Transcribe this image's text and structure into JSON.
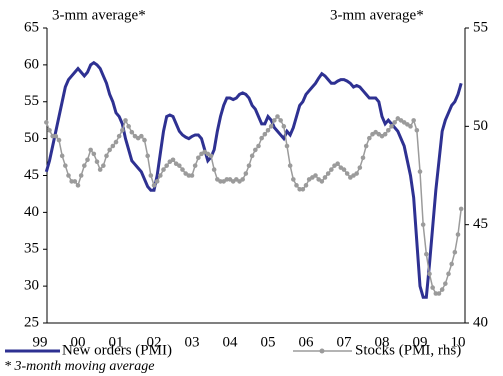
{
  "chart_data": {
    "type": "line",
    "annotations": [
      "3-mm average*",
      "3-mm average*"
    ],
    "footnote": "* 3-month moving average",
    "categories": [
      "99",
      null,
      null,
      null,
      null,
      null,
      null,
      null,
      null,
      null,
      null,
      null,
      "00",
      null,
      null,
      null,
      null,
      null,
      null,
      null,
      null,
      null,
      null,
      null,
      "01",
      null,
      null,
      null,
      null,
      null,
      null,
      null,
      null,
      null,
      null,
      null,
      "02",
      null,
      null,
      null,
      null,
      null,
      null,
      null,
      null,
      null,
      null,
      null,
      "03",
      null,
      null,
      null,
      null,
      null,
      null,
      null,
      null,
      null,
      null,
      null,
      "04",
      null,
      null,
      null,
      null,
      null,
      null,
      null,
      null,
      null,
      null,
      null,
      "05",
      null,
      null,
      null,
      null,
      null,
      null,
      null,
      null,
      null,
      null,
      null,
      "06",
      null,
      null,
      null,
      null,
      null,
      null,
      null,
      null,
      null,
      null,
      null,
      "07",
      null,
      null,
      null,
      null,
      null,
      null,
      null,
      null,
      null,
      null,
      null,
      "08",
      null,
      null,
      null,
      null,
      null,
      null,
      null,
      null,
      null,
      null,
      null,
      "09",
      null,
      null,
      null,
      null,
      null,
      null,
      null,
      null,
      null,
      null,
      null,
      "10",
      null
    ],
    "series": [
      {
        "name": "New orders (PMI)",
        "color": "#2e3192",
        "values": [
          null,
          null,
          45.5,
          47,
          49,
          51,
          53,
          55,
          57,
          58,
          58.5,
          59,
          59.5,
          59,
          58.5,
          59,
          60,
          60.3,
          60,
          59.5,
          58.5,
          57.5,
          56,
          55,
          53.5,
          53,
          52,
          50,
          48.5,
          47,
          46.5,
          46,
          45.5,
          44.5,
          43.5,
          43,
          43,
          45,
          48,
          51,
          53,
          53.2,
          53,
          52,
          51,
          50.5,
          50.2,
          50,
          50.3,
          50.5,
          50.5,
          50,
          48.5,
          47,
          47.5,
          48.5,
          51,
          53,
          54.5,
          55.5,
          55.5,
          55.3,
          55.5,
          56,
          56.2,
          56,
          55.5,
          54.5,
          54,
          53,
          52,
          52,
          53,
          52.5,
          51.5,
          51,
          50.5,
          50,
          51,
          50.5,
          51.5,
          53,
          54.5,
          55,
          56,
          56.5,
          57,
          57.5,
          58.2,
          58.8,
          58.5,
          58,
          57.5,
          57.5,
          57.8,
          58,
          58,
          57.8,
          57.5,
          57,
          57.2,
          57,
          56.5,
          56,
          55.5,
          55.5,
          55.5,
          55,
          53,
          52,
          52.5,
          52,
          51.5,
          51,
          50,
          49,
          47,
          45,
          42,
          36,
          30,
          28.5,
          28.5,
          33,
          38,
          43,
          47,
          51,
          52.5,
          53.5,
          54.5,
          55,
          56,
          57.5
        ]
      },
      {
        "name": "Stocks (PMI, rhs)",
        "color": "#9b9b9b",
        "axis": "y2",
        "values": [
          null,
          null,
          50.2,
          49.8,
          49.5,
          49.5,
          49.3,
          48.5,
          48,
          47.5,
          47.2,
          47.2,
          47,
          47.5,
          48,
          48.3,
          48.8,
          48.6,
          48.2,
          47.8,
          48,
          48.5,
          48.8,
          49,
          49.2,
          49.5,
          49.8,
          50.3,
          50,
          49.7,
          49.5,
          49.4,
          49.5,
          49.3,
          48.5,
          47.5,
          47,
          47.2,
          47.5,
          47.8,
          48,
          48.2,
          48.3,
          48.1,
          48,
          47.8,
          47.6,
          47.5,
          47.5,
          48,
          48.4,
          48.6,
          48.7,
          48.6,
          48.5,
          47.8,
          47.3,
          47.2,
          47.2,
          47.3,
          47.3,
          47.2,
          47.3,
          47.2,
          47.3,
          47.6,
          48,
          48.5,
          48.8,
          49,
          49.4,
          49.6,
          49.8,
          50,
          50.3,
          50.5,
          50.3,
          50,
          49,
          48,
          47.3,
          47,
          46.8,
          46.8,
          47,
          47.3,
          47.4,
          47.5,
          47.3,
          47.2,
          47.4,
          47.6,
          47.8,
          48,
          48.1,
          47.9,
          47.8,
          47.6,
          47.4,
          47.5,
          47.6,
          47.9,
          48.4,
          49,
          49.4,
          49.6,
          49.7,
          49.6,
          49.5,
          49.6,
          49.8,
          50,
          50.2,
          50.4,
          50.3,
          50.2,
          50.1,
          50,
          50.3,
          49.8,
          47.7,
          45,
          43.5,
          42.5,
          41.8,
          41.5,
          41.5,
          41.7,
          42,
          42.5,
          43,
          43.6,
          44.5,
          45.8
        ]
      }
    ],
    "ylim": [
      25,
      65
    ],
    "yticks": [
      25,
      30,
      35,
      40,
      45,
      50,
      55,
      60,
      65
    ],
    "y2lim": [
      40,
      55
    ],
    "y2ticks": [
      40,
      45,
      50,
      55
    ]
  }
}
